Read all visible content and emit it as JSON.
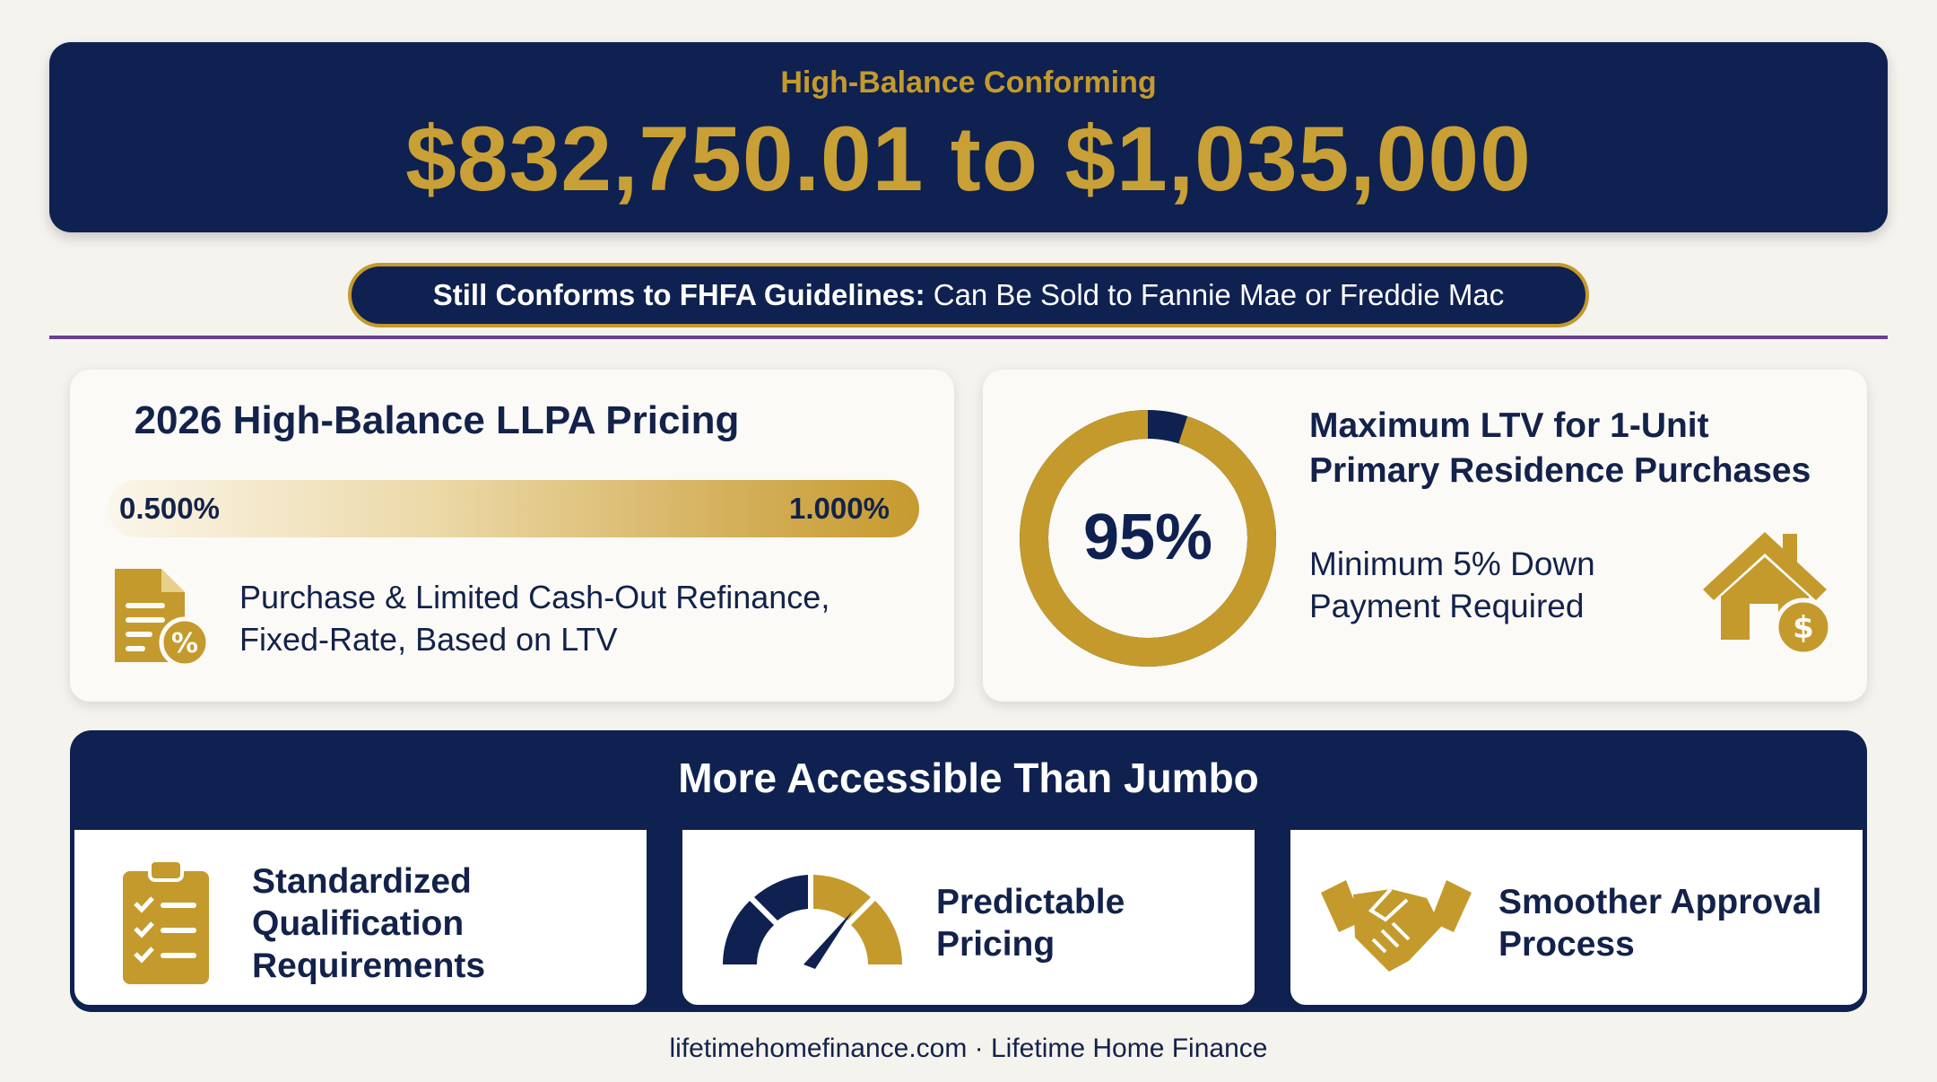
{
  "banner": {
    "kicker": "High-Balance Conforming",
    "range": "$832,750.01 to $1,035,000"
  },
  "pill": {
    "bold": "Still Conforms to FHFA Guidelines:",
    "text": " Can Be Sold to Fannie Mae or Freddie Mac"
  },
  "llpa": {
    "title": "2026 High-Balance LLPA Pricing",
    "low": "0.500%",
    "high": "1.000%",
    "icon": "document-percent-icon",
    "description": "Purchase & Limited Cash-Out Refinance, Fixed-Rate, Based on LTV"
  },
  "ltv": {
    "value": "95%",
    "fraction": 0.95,
    "title": "Maximum LTV for 1-Unit Primary Residence Purchases",
    "subtitle": "Minimum 5% Down Payment Required",
    "icon": "house-dollar-icon"
  },
  "accessible": {
    "title": "More Accessible Than Jumbo",
    "features": [
      {
        "label": "Standardized Qualification Requirements",
        "icon": "clipboard-checklist-icon"
      },
      {
        "label": "Predictable Pricing",
        "icon": "gauge-icon"
      },
      {
        "label": "Smoother Approval Process",
        "icon": "handshake-icon"
      }
    ]
  },
  "footer": "lifetimehomefinance.com · Lifetime Home Finance",
  "colors": {
    "navy": "#0f2150",
    "gold": "#c49a2c",
    "purple_divider": "#6a3f95",
    "background": "#f5f3ee"
  }
}
